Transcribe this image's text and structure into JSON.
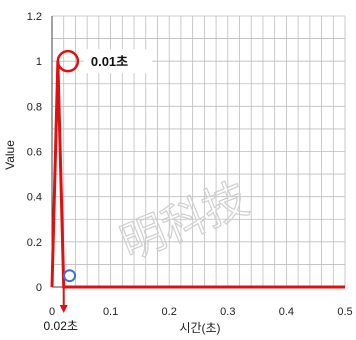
{
  "chart_data": {
    "type": "line",
    "xlabel": "시간(초)",
    "ylabel": "Value",
    "xlim": [
      0,
      0.5
    ],
    "ylim": [
      0,
      1.2
    ],
    "xticks": [
      "0",
      "0.1",
      "0.2",
      "0.3",
      "0.4",
      "0.5"
    ],
    "yticks": [
      "0",
      "0.2",
      "0.4",
      "0.6",
      "0.8",
      "1",
      "1.2"
    ],
    "grid": true,
    "series": [
      {
        "x": [
          0,
          0.01,
          0.02,
          0.5
        ],
        "y": [
          0,
          1,
          0,
          0
        ],
        "color": "#e01010"
      }
    ],
    "annotations": [
      {
        "text": "0.01초",
        "x": 0.01,
        "y": 1,
        "marker": "red-circle"
      },
      {
        "text": "0.02초",
        "x": 0.02,
        "y": 0,
        "marker": "down-arrow"
      },
      {
        "text": "",
        "x": 0.03,
        "y": 0.05,
        "marker": "blue-circle"
      }
    ],
    "watermark": "明科技"
  }
}
